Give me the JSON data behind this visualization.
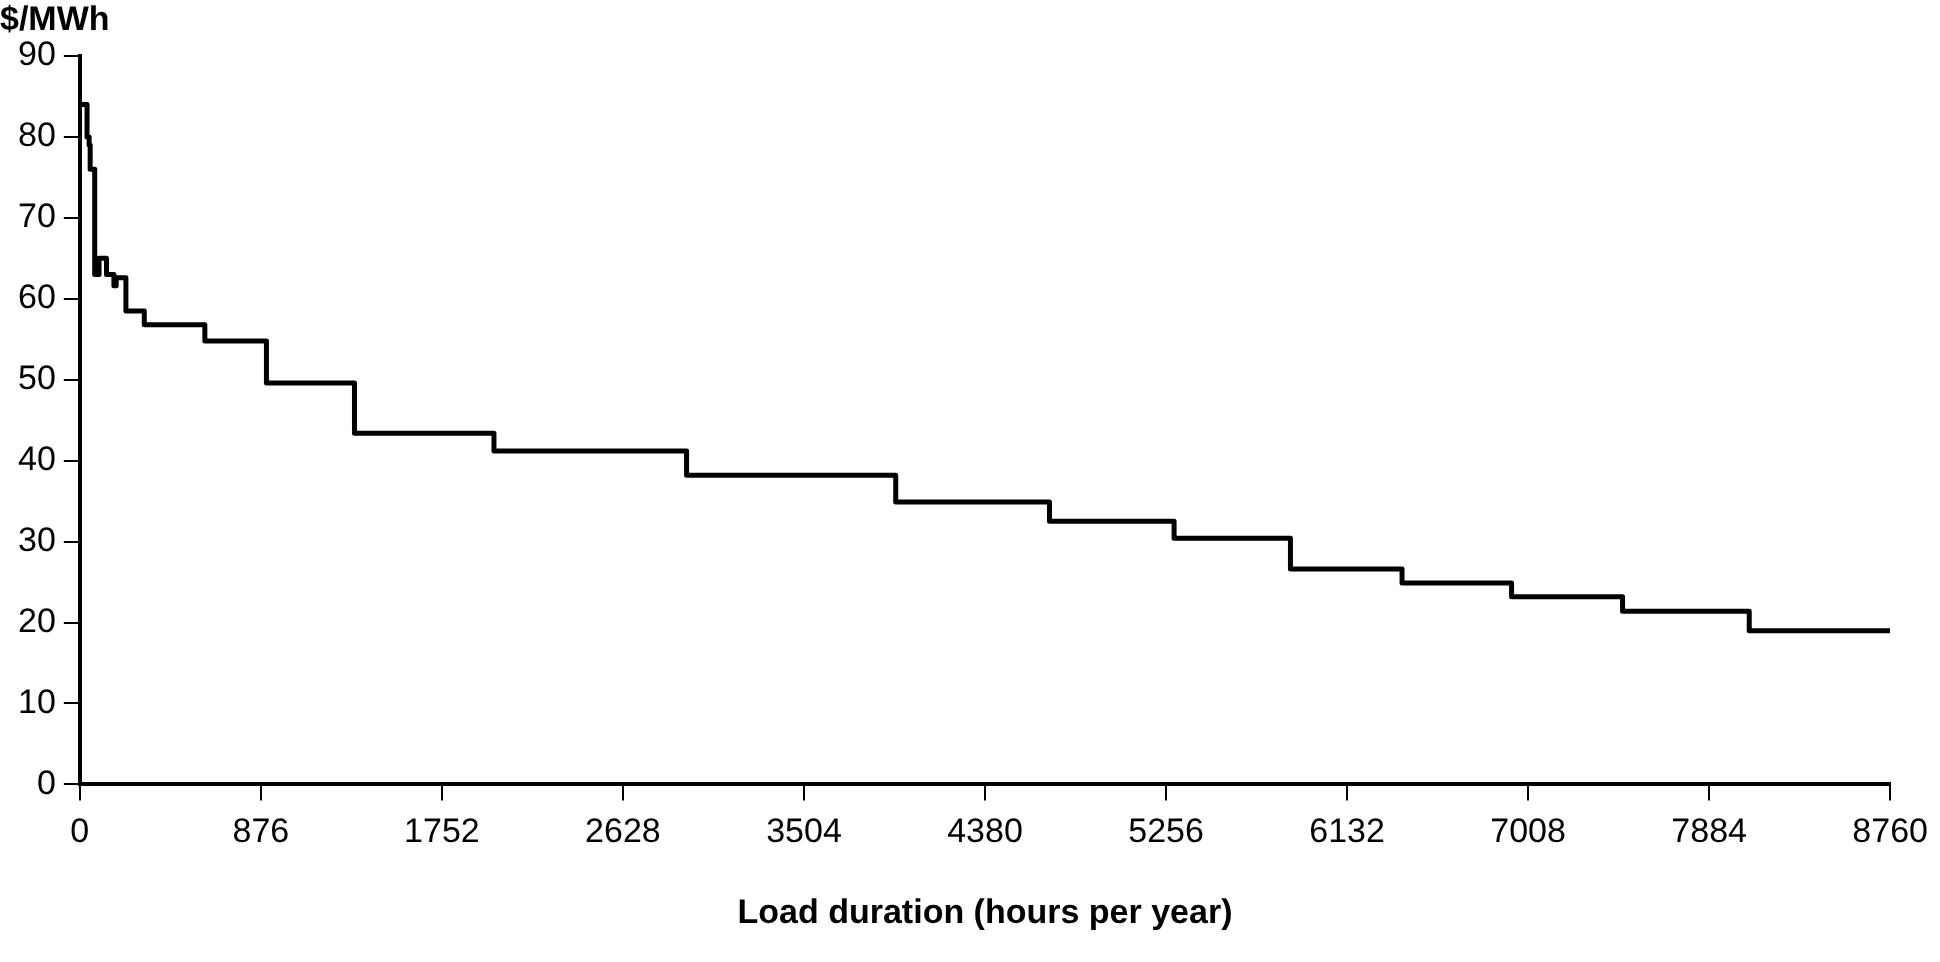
{
  "chart_data": {
    "type": "step",
    "ylabel": "$/MWh",
    "xlabel": "Load duration (hours per year)",
    "series": [
      {
        "color": "#000000",
        "x": [
          0,
          35,
          45,
          50,
          72,
          93,
          129,
          165,
          176,
          223,
          312,
          605,
          903,
          1329,
          2004,
          2936,
          3948,
          4692,
          5295,
          5858,
          6398,
          6928,
          7465,
          8078,
          8525,
          8760
        ],
        "values": [
          84,
          80,
          79,
          76,
          63,
          65,
          63,
          61.6,
          62.6,
          58.5,
          56.8,
          54.8,
          49.6,
          43.4,
          41.2,
          38.2,
          34.9,
          32.5,
          30.4,
          26.6,
          24.9,
          23.2,
          21.4,
          19,
          19,
          19
        ]
      }
    ],
    "xlim": [
      0,
      8760
    ],
    "xticks": [
      0,
      876,
      1752,
      2628,
      3504,
      4380,
      5256,
      6132,
      7008,
      7884,
      8760
    ],
    "ylim": [
      0,
      90
    ],
    "yticks": [
      0,
      10,
      20,
      30,
      40,
      50,
      60,
      70,
      80,
      90
    ],
    "grid": false,
    "legend": false,
    "line_style": "solid",
    "marker": "none"
  }
}
